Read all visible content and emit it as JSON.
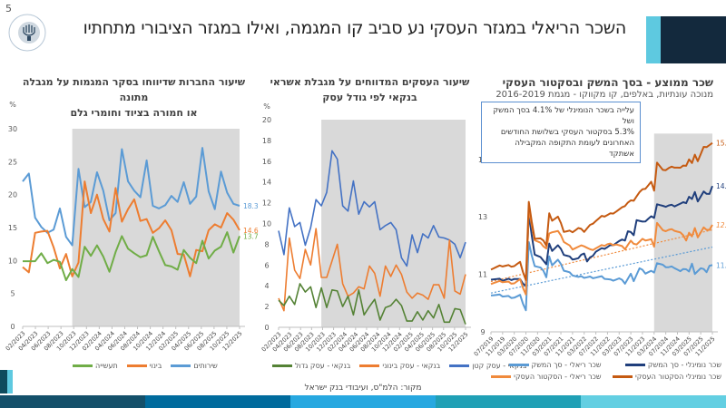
{
  "slide_number": "5",
  "title": "השכר הריאלי במגזר העסקי נע סביב קו המגמה, ואילו במגזר הציבורי מתחתיו",
  "logo": "bank-of-israel-logo",
  "source": "מקור: הלמ\"ס, ועיבודי בנק ישראל",
  "colors": {
    "header_dark": "#13293d",
    "header_light": "#5ec9e0",
    "shade": "#d9d9d9",
    "footer": [
      "#14506a",
      "#006b9d",
      "#27a8e0",
      "#20a0b5",
      "#63cfe2"
    ]
  },
  "chart_data": [
    {
      "type": "line",
      "title_lines": [
        "שיעור החברות שדיווחו בסקר המגמות על מגבלה מתונה",
        "או חמורה בציוד וחומרי גלם"
      ],
      "ylabel": "%",
      "ylim": [
        0,
        30
      ],
      "yticks": [
        0,
        5,
        10,
        15,
        20,
        25,
        30
      ],
      "x_tick_labels": [
        "02/2023",
        "04/2023",
        "06/2023",
        "08/2023",
        "10/2023",
        "12/2023",
        "02/2024",
        "04/2024",
        "06/2024",
        "08/2024",
        "10/2024",
        "12/2024",
        "02/2025",
        "04/2025",
        "06/2025",
        "08/2025",
        "10/2025",
        "12/2025"
      ],
      "n_points": 36,
      "shade_from_index": 8,
      "series": [
        {
          "name": "שירותים",
          "color": "#5b9bd5",
          "end_label": "18.3",
          "values": [
            22,
            23.2,
            16.5,
            15.1,
            14.2,
            14.7,
            17.9,
            13.6,
            12.3,
            23.9,
            18.1,
            18.9,
            23.4,
            20.6,
            16.1,
            17.2,
            26.9,
            22,
            20.6,
            19.6,
            25.2,
            18.3,
            17.9,
            18.4,
            19.8,
            18.9,
            21.9,
            18.6,
            19.7,
            27.1,
            20.5,
            17.8,
            23.5,
            20.3,
            18.6,
            18.3
          ]
        },
        {
          "name": "בינוי",
          "color": "#ed7d31",
          "end_label": "14.6",
          "values": [
            9,
            8.2,
            14.2,
            14.4,
            14.5,
            12,
            8.8,
            11,
            7.6,
            9.7,
            22,
            17.2,
            20,
            16.3,
            14.4,
            21,
            15.9,
            17.8,
            19.3,
            16,
            16.3,
            14.2,
            14.9,
            16.1,
            14.6,
            11,
            10.9,
            7.6,
            11.6,
            11.4,
            14.6,
            15.5,
            15,
            17.2,
            16.2,
            14.6
          ]
        },
        {
          "name": "תעשייה",
          "color": "#70ad47",
          "end_label": "13.7",
          "values": [
            9.9,
            9.9,
            9.9,
            11.1,
            9.6,
            10.1,
            9.8,
            7,
            8.7,
            7.5,
            12.1,
            10.7,
            12.3,
            10.6,
            8.3,
            11.3,
            13.7,
            11.8,
            11.1,
            10.5,
            10.8,
            13.6,
            11.4,
            9.3,
            9.1,
            8.6,
            11.6,
            10.4,
            9.6,
            13,
            10.3,
            11.5,
            12.1,
            14.3,
            11.2,
            13.7
          ]
        }
      ],
      "legend": "bottom"
    },
    {
      "type": "line",
      "title_lines": [
        "שיעור העסקים המדווחים על מגבלת אשראי",
        "בנקאי לפי גודל עסק"
      ],
      "ylabel": "%",
      "ylim": [
        0,
        20
      ],
      "yticks": [
        0,
        2,
        4,
        6,
        8,
        10,
        12,
        14,
        16,
        18,
        20
      ],
      "x_tick_labels": [
        "02/2023",
        "04/2023",
        "06/2023",
        "08/2023",
        "10/2023",
        "12/2023",
        "02/2024",
        "04/2024",
        "06/2024",
        "08/2024",
        "10/2024",
        "12/2024",
        "02/2025",
        "04/2025",
        "06/2025",
        "08/2025",
        "10/2025",
        "12/2025"
      ],
      "n_points": 36,
      "shade_from_index": 8,
      "series": [
        {
          "name": "בנקאי - עסק קטן",
          "color": "#4472c4",
          "values": [
            9.3,
            7,
            11.5,
            9.7,
            10.1,
            7.9,
            9.6,
            12.3,
            11.7,
            13,
            17,
            16.2,
            11.7,
            11.2,
            14.1,
            10.9,
            12.1,
            11.6,
            12.1,
            9.4,
            9.8,
            10.1,
            9.4,
            6.7,
            5.9,
            8.9,
            7.2,
            9,
            8.6,
            9.8,
            8.7,
            8.6,
            8.4,
            8,
            6.7,
            8.2
          ]
        },
        {
          "name": "בנקאי - עסק בינוני",
          "color": "#ed7d31",
          "values": [
            2.8,
            1.6,
            8.6,
            5.5,
            4.7,
            7.5,
            6,
            9.5,
            4.8,
            4.8,
            6.4,
            8,
            4.2,
            3,
            3.3,
            3.9,
            3.7,
            5.9,
            5.2,
            3,
            5.9,
            4.9,
            6,
            5.1,
            3.4,
            2.8,
            3.3,
            3.1,
            2.7,
            4.1,
            4.1,
            2.8,
            8.4,
            3.5,
            3.2,
            5.1
          ]
        },
        {
          "name": "בנקאי - עסק גדול",
          "color": "#548235",
          "values": [
            2.6,
            2.1,
            3,
            2.2,
            4.2,
            3.4,
            3.9,
            1.9,
            3.8,
            1.9,
            3.6,
            3.5,
            2,
            3,
            1.2,
            3.6,
            1.2,
            2,
            2.7,
            0.7,
            1.9,
            2.1,
            2.7,
            2.1,
            0.6,
            0.6,
            1.5,
            0.7,
            1.6,
            0.9,
            2.2,
            0.5,
            0.5,
            1.8,
            1.7,
            0.3
          ]
        }
      ],
      "legend": "bottom"
    },
    {
      "type": "line",
      "title_lines": [
        "שכר ממוצע - בסך המשק ובסקטור העסקי"
      ],
      "subtitle": "מנוכה עונתיות, באלפים, קו מקווקו - מגמת 2016-2019",
      "ylim": [
        9,
        15.5
      ],
      "yticks": [
        9,
        11,
        13,
        15
      ],
      "x_tick_labels": [
        "07/2019",
        "11/2019",
        "03/2020",
        "07/2020",
        "11/2020",
        "03/2021",
        "07/2021",
        "11/2021",
        "03/2022",
        "07/2022",
        "11/2022",
        "03/2023",
        "07/2023",
        "11/2023",
        "03/2024",
        "07/2024",
        "11/2024",
        "03/2025",
        "07/2025",
        "11/2025"
      ],
      "n_points": 77,
      "shade_from_index": 56,
      "annotation": [
        "עלייה בשכר הנומינלי של 4.1% בסך המשק ושל",
        "5.3% בסקטור העסקי בשלושת החודשים",
        "האחרונים לעומת התקופה המקבילה אשתקד"
      ],
      "series": [
        {
          "name": "שכר ריאלי - סך המשק",
          "color": "#5b9bd5",
          "end_label": "11.3",
          "legend_col": 1,
          "keypoints": [
            [
              0,
              10.3
            ],
            [
              4,
              10.25
            ],
            [
              8,
              10.2
            ],
            [
              10,
              10.25
            ],
            [
              12,
              9.75
            ],
            [
              13,
              12.1
            ],
            [
              15,
              11.3
            ],
            [
              18,
              11.15
            ],
            [
              19,
              10.9
            ],
            [
              20,
              11.6
            ],
            [
              21,
              11.35
            ],
            [
              23,
              11.5
            ],
            [
              25,
              11.15
            ],
            [
              28,
              11
            ],
            [
              30,
              10.9
            ],
            [
              32,
              10.9
            ],
            [
              35,
              10.9
            ],
            [
              38,
              10.9
            ],
            [
              41,
              10.8
            ],
            [
              44,
              10.85
            ],
            [
              46,
              10.7
            ],
            [
              48,
              11
            ],
            [
              49,
              10.8
            ],
            [
              51,
              11.2
            ],
            [
              53,
              11.05
            ],
            [
              55,
              11.1
            ],
            [
              56,
              11.1
            ],
            [
              57,
              11.4
            ],
            [
              59,
              11.3
            ],
            [
              61,
              11.25
            ],
            [
              63,
              11.25
            ],
            [
              65,
              11.1
            ],
            [
              67,
              11.2
            ],
            [
              68,
              11.1
            ],
            [
              69,
              11.35
            ],
            [
              70,
              11.05
            ],
            [
              72,
              11.2
            ],
            [
              74,
              11.1
            ],
            [
              75,
              11.3
            ],
            [
              77,
              11.3
            ]
          ]
        },
        {
          "name": "שכר נומינלי - סך המשק",
          "color": "#203f7c",
          "end_label": "14.1",
          "legend_col": 0,
          "keypoints": [
            [
              0,
              10.85
            ],
            [
              4,
              10.8
            ],
            [
              8,
              10.85
            ],
            [
              10,
              10.8
            ],
            [
              12,
              10.6
            ],
            [
              13,
              13.1
            ],
            [
              15,
              11.7
            ],
            [
              18,
              11.5
            ],
            [
              19,
              11.35
            ],
            [
              20,
              12.05
            ],
            [
              21,
              11.85
            ],
            [
              23,
              12
            ],
            [
              25,
              11.7
            ],
            [
              28,
              11.55
            ],
            [
              30,
              11.55
            ],
            [
              32,
              11.75
            ],
            [
              33,
              11.45
            ],
            [
              36,
              11.8
            ],
            [
              40,
              11.95
            ],
            [
              44,
              12.15
            ],
            [
              46,
              12.2
            ],
            [
              47,
              12.5
            ],
            [
              49,
              12.4
            ],
            [
              50,
              12.9
            ],
            [
              52,
              12.8
            ],
            [
              55,
              13
            ],
            [
              56,
              13
            ],
            [
              57,
              13.45
            ],
            [
              59,
              13.35
            ],
            [
              61,
              13.4
            ],
            [
              63,
              13.4
            ],
            [
              65,
              13.45
            ],
            [
              67,
              13.5
            ],
            [
              68,
              13.7
            ],
            [
              69,
              13.6
            ],
            [
              70,
              13.9
            ],
            [
              71,
              13.55
            ],
            [
              73,
              13.85
            ],
            [
              75,
              13.8
            ],
            [
              76,
              14.05
            ],
            [
              77,
              14.1
            ]
          ]
        },
        {
          "name": "שכר ריאלי - הסקטור העסקי",
          "color": "#f08a3c",
          "end_label": "12.6",
          "legend_col": 1,
          "keypoints": [
            [
              0,
              10.7
            ],
            [
              4,
              10.75
            ],
            [
              8,
              10.7
            ],
            [
              10,
              10.8
            ],
            [
              12,
              10.3
            ],
            [
              13,
              13.3
            ],
            [
              15,
              12.2
            ],
            [
              18,
              12
            ],
            [
              19,
              11.9
            ],
            [
              20,
              12.4
            ],
            [
              21,
              12.5
            ],
            [
              23,
              12.5
            ],
            [
              25,
              12.15
            ],
            [
              28,
              11.9
            ],
            [
              30,
              11.95
            ],
            [
              32,
              12
            ],
            [
              34,
              11.85
            ],
            [
              37,
              11.95
            ],
            [
              40,
              12.05
            ],
            [
              43,
              12.05
            ],
            [
              46,
              11.9
            ],
            [
              48,
              12.15
            ],
            [
              50,
              12.05
            ],
            [
              52,
              12.2
            ],
            [
              55,
              12.2
            ],
            [
              56,
              12
            ],
            [
              57,
              12.8
            ],
            [
              59,
              12.5
            ],
            [
              61,
              12.55
            ],
            [
              63,
              12.55
            ],
            [
              65,
              12.45
            ],
            [
              67,
              12.2
            ],
            [
              68,
              12.45
            ],
            [
              69,
              12.3
            ],
            [
              70,
              12.65
            ],
            [
              71,
              12.3
            ],
            [
              73,
              12.6
            ],
            [
              75,
              12.55
            ],
            [
              76,
              12.7
            ],
            [
              77,
              12.6
            ]
          ]
        },
        {
          "name": "שכר נומינלי הסקטור העסקי",
          "color": "#c55a11",
          "end_label": "15.5",
          "legend_col": 0,
          "keypoints": [
            [
              0,
              11.2
            ],
            [
              4,
              11.3
            ],
            [
              8,
              11.3
            ],
            [
              10,
              11.4
            ],
            [
              12,
              10.8
            ],
            [
              13,
              13.5
            ],
            [
              15,
              12.25
            ],
            [
              18,
              12.2
            ],
            [
              19,
              12
            ],
            [
              20,
              13.1
            ],
            [
              21,
              12.9
            ],
            [
              23,
              13
            ],
            [
              25,
              12.5
            ],
            [
              28,
              12.5
            ],
            [
              30,
              12.6
            ],
            [
              32,
              12.5
            ],
            [
              35,
              12.8
            ],
            [
              38,
              13
            ],
            [
              41,
              13.1
            ],
            [
              43,
              13.2
            ],
            [
              45,
              13.3
            ],
            [
              47,
              13.5
            ],
            [
              49,
              13.6
            ],
            [
              51,
              13.85
            ],
            [
              53,
              14
            ],
            [
              55,
              14.2
            ],
            [
              56,
              13.95
            ],
            [
              57,
              14.9
            ],
            [
              59,
              14.6
            ],
            [
              61,
              14.7
            ],
            [
              63,
              14.75
            ],
            [
              65,
              14.7
            ],
            [
              67,
              14.8
            ],
            [
              68,
              15
            ],
            [
              69,
              14.85
            ],
            [
              70,
              15.2
            ],
            [
              71,
              14.95
            ],
            [
              73,
              15.4
            ],
            [
              75,
              15.5
            ],
            [
              76,
              15.55
            ],
            [
              77,
              15.5
            ]
          ]
        }
      ],
      "trend_lines": [
        {
          "name": "מגמת 2016-2019 - ריאלי הסקטור העסקי",
          "color": "#f08a3c",
          "from": [
            0,
            10.75
          ],
          "to": [
            77,
            12.55
          ]
        },
        {
          "name": "מגמת 2016-2019 - ריאלי סך המשק",
          "color": "#5b9bd5",
          "from": [
            0,
            10.35
          ],
          "to": [
            77,
            11.95
          ]
        }
      ],
      "legend": "bottom"
    }
  ]
}
